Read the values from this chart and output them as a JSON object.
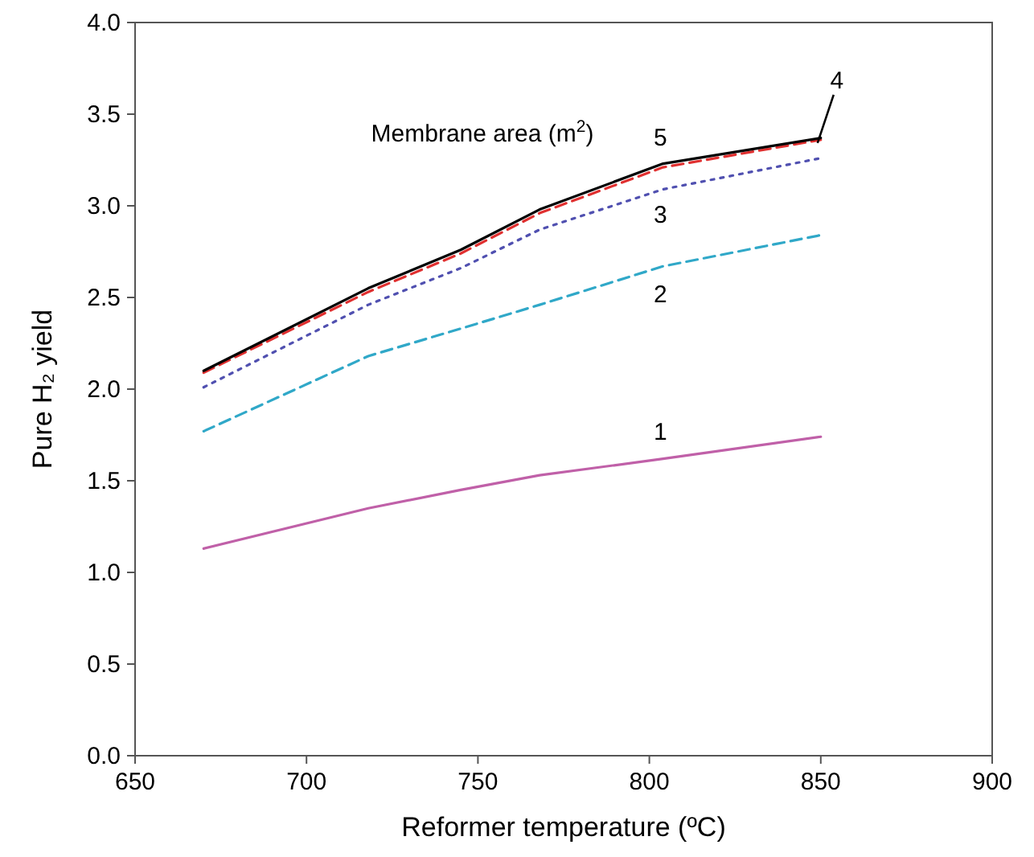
{
  "chart_data": {
    "type": "line",
    "xlabel": "Reformer temperature (ºC)",
    "ylabel": "Pure H₂ yield",
    "legend_title": "Membrane area (m$^{2}$)",
    "xlim": [
      650,
      900
    ],
    "xticks": [
      650,
      700,
      750,
      800,
      850,
      900
    ],
    "ylim": [
      0,
      4
    ],
    "yticks": [
      {
        "value": 0,
        "label": "0.0"
      },
      {
        "value": 0.5,
        "label": "0.5"
      },
      {
        "value": 1,
        "label": "1.0"
      },
      {
        "value": 1.5,
        "label": "1.5"
      },
      {
        "value": 2,
        "label": "2.0"
      },
      {
        "value": 2.5,
        "label": "2.5"
      },
      {
        "value": 3,
        "label": "3.0"
      },
      {
        "value": 3.5,
        "label": "3.5"
      },
      {
        "value": 4,
        "label": "4.0"
      }
    ],
    "grid": false,
    "marker": "none",
    "x": [
      670,
      718,
      745,
      768,
      804,
      850
    ],
    "series": [
      {
        "name": "1",
        "color": "#c060a8",
        "line_style": "solid",
        "values": [
          1.13,
          1.35,
          1.45,
          1.53,
          1.62,
          1.74
        ]
      },
      {
        "name": "2",
        "color": "#30a8c8",
        "line_style": "dashed",
        "values": [
          1.77,
          2.18,
          2.33,
          2.46,
          2.67,
          2.84
        ]
      },
      {
        "name": "3",
        "color": "#5050b0",
        "line_style": "dotted",
        "values": [
          2.01,
          2.46,
          2.66,
          2.87,
          3.09,
          3.26
        ]
      },
      {
        "name": "4",
        "color": "#e03030",
        "line_style": "dashed",
        "values": [
          2.09,
          2.53,
          2.74,
          2.96,
          3.21,
          3.36
        ]
      },
      {
        "name": "5",
        "color": "#000000",
        "line_style": "solid",
        "values": [
          2.1,
          2.55,
          2.76,
          2.98,
          3.23,
          3.37
        ]
      }
    ]
  }
}
